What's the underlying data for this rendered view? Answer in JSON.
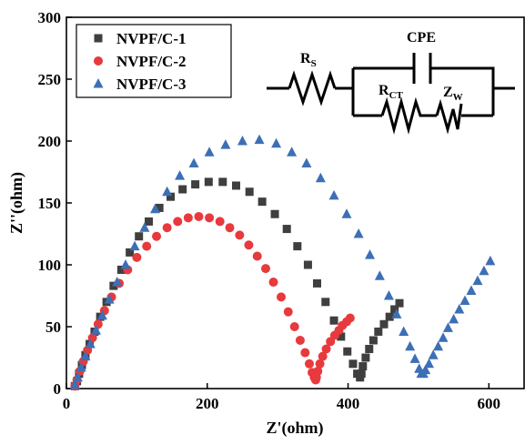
{
  "chart_data": {
    "type": "scatter",
    "xlabel": "Z'(ohm)",
    "ylabel": "Z''(ohm)",
    "xlim": [
      0,
      650
    ],
    "ylim": [
      0,
      300
    ],
    "xticks": [
      0,
      200,
      400,
      600
    ],
    "yticks": [
      0,
      50,
      100,
      150,
      200,
      250,
      300
    ],
    "legend_position": "top-left",
    "grid": false,
    "series": [
      {
        "name": "NVPF/C-1",
        "marker": "square",
        "color": "#3f3f3f",
        "x": [
          12,
          15,
          18,
          22,
          27,
          33,
          40,
          48,
          57,
          67,
          78,
          90,
          103,
          117,
          132,
          148,
          165,
          183,
          202,
          222,
          241,
          260,
          278,
          296,
          313,
          328,
          343,
          356,
          368,
          380,
          390,
          399,
          407,
          413,
          417,
          419,
          421,
          425,
          430,
          436,
          443,
          451,
          459,
          466,
          473
        ],
        "y": [
          2,
          6,
          12,
          19,
          27,
          36,
          46,
          58,
          70,
          83,
          96,
          110,
          123,
          135,
          146,
          155,
          161,
          165,
          167,
          167,
          164,
          159,
          151,
          141,
          129,
          115,
          100,
          85,
          70,
          55,
          42,
          30,
          20,
          12,
          9,
          12,
          18,
          25,
          32,
          39,
          46,
          52,
          58,
          64,
          69
        ]
      },
      {
        "name": "NVPF/C-2",
        "marker": "circle",
        "color": "#e8393d",
        "x": [
          12,
          15,
          19,
          24,
          30,
          37,
          45,
          54,
          64,
          75,
          87,
          100,
          114,
          128,
          143,
          158,
          173,
          188,
          203,
          218,
          232,
          246,
          259,
          271,
          283,
          294,
          305,
          315,
          324,
          332,
          339,
          345,
          349,
          352,
          354,
          355,
          357,
          360,
          364,
          369,
          375,
          381,
          387,
          392,
          398,
          403
        ],
        "y": [
          2,
          7,
          14,
          22,
          31,
          41,
          52,
          63,
          74,
          85,
          96,
          106,
          115,
          123,
          130,
          135,
          138,
          139,
          138,
          135,
          130,
          124,
          116,
          107,
          97,
          86,
          74,
          62,
          50,
          39,
          29,
          20,
          13,
          9,
          7,
          9,
          14,
          20,
          26,
          32,
          38,
          43,
          47,
          51,
          54,
          57
        ]
      },
      {
        "name": "NVPF/C-3",
        "marker": "triangle",
        "color": "#3d6fb6",
        "x": [
          12,
          16,
          21,
          27,
          34,
          42,
          51,
          61,
          72,
          84,
          97,
          111,
          126,
          143,
          161,
          181,
          203,
          226,
          250,
          274,
          298,
          320,
          341,
          361,
          380,
          398,
          415,
          431,
          445,
          458,
          469,
          479,
          488,
          495,
          501,
          504,
          507,
          510,
          515,
          521,
          528,
          535,
          542,
          550,
          558,
          566,
          575,
          584,
          593,
          602
        ],
        "y": [
          3,
          9,
          17,
          26,
          36,
          47,
          59,
          72,
          86,
          100,
          115,
          130,
          145,
          159,
          172,
          182,
          191,
          197,
          200,
          201,
          198,
          191,
          182,
          170,
          156,
          141,
          125,
          108,
          91,
          75,
          60,
          46,
          34,
          24,
          16,
          12,
          12,
          15,
          20,
          27,
          34,
          41,
          49,
          56,
          64,
          71,
          79,
          87,
          95,
          103
        ]
      }
    ]
  },
  "inset": {
    "label_cpe": "CPE",
    "label_rs": "R",
    "label_rs_sub": "S",
    "label_rct": "R",
    "label_rct_sub": "CT",
    "label_zw": "Z",
    "label_zw_sub": "W"
  }
}
